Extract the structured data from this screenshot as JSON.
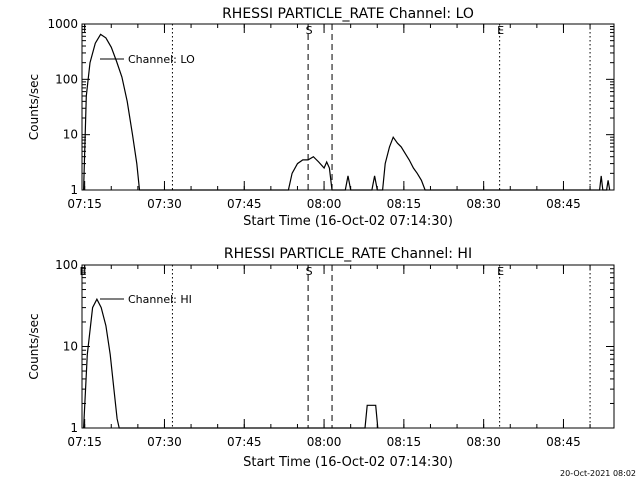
{
  "footer_timestamp": "20-Oct-2021 08:02",
  "chart_data": [
    {
      "type": "line",
      "title": "RHESSI PARTICLE_RATE Channel: LO",
      "xlabel": "Start Time (16-Oct-02 07:14:30)",
      "ylabel": "Counts/sec",
      "y_log": true,
      "ylim": [
        1,
        1000
      ],
      "y_ticks": [
        1,
        10,
        100,
        1000
      ],
      "y_tick_labels": [
        "1",
        "10",
        "100",
        "1000"
      ],
      "x_ticks": [
        0.5,
        15.5,
        30.5,
        45.5,
        60.5,
        75.5,
        90.5
      ],
      "x_tick_labels": [
        "07:15",
        "07:30",
        "07:45",
        "08:00",
        "08:15",
        "08:30",
        "08:45"
      ],
      "xlim_minutes": [
        0,
        100
      ],
      "grid": false,
      "legend": {
        "label": "Channel: LO",
        "placement": "top-left"
      },
      "markers": [
        {
          "minute": 0,
          "label": "",
          "style": "dotted"
        },
        {
          "minute": 17,
          "label": "",
          "style": "dotted"
        },
        {
          "minute": 42.5,
          "label": "S",
          "style": "dashed"
        },
        {
          "minute": 47,
          "label": "",
          "style": "dashed"
        },
        {
          "minute": 78.5,
          "label": "E",
          "style": "dotted"
        },
        {
          "minute": 95.5,
          "label": "",
          "style": "dotted"
        }
      ],
      "series": [
        {
          "name": "Channel: LO",
          "points": [
            [
              0.3,
              1
            ],
            [
              0.8,
              50
            ],
            [
              1.5,
              200
            ],
            [
              2.5,
              450
            ],
            [
              3.5,
              650
            ],
            [
              4.5,
              560
            ],
            [
              5.5,
              380
            ],
            [
              6.5,
              210
            ],
            [
              7.5,
              110
            ],
            [
              8.5,
              40
            ],
            [
              9.5,
              10
            ],
            [
              10.3,
              3
            ],
            [
              10.8,
              1
            ],
            [
              38.8,
              1
            ],
            [
              39.5,
              2
            ],
            [
              40.5,
              3
            ],
            [
              41.5,
              3.5
            ],
            [
              42.5,
              3.5
            ],
            [
              43.5,
              4
            ],
            [
              44.5,
              3.2
            ],
            [
              45.5,
              2.5
            ],
            [
              46,
              3.2
            ],
            [
              46.5,
              2.5
            ],
            [
              47,
              1
            ],
            [
              49.5,
              1
            ],
            [
              50,
              1.8
            ],
            [
              50.5,
              1
            ],
            [
              54.5,
              1
            ],
            [
              55,
              1.8
            ],
            [
              55.5,
              1
            ],
            [
              56.5,
              1
            ],
            [
              57,
              3
            ],
            [
              57.8,
              6
            ],
            [
              58.5,
              9
            ],
            [
              59.3,
              7
            ],
            [
              60,
              6
            ],
            [
              60.8,
              4.5
            ],
            [
              61.5,
              3.5
            ],
            [
              62.3,
              2.5
            ],
            [
              63,
              2
            ],
            [
              63.8,
              1.5
            ],
            [
              64.5,
              1
            ],
            [
              97.3,
              1
            ],
            [
              97.6,
              1.8
            ],
            [
              97.9,
              1
            ],
            [
              98.6,
              1
            ],
            [
              98.9,
              1.5
            ],
            [
              99.2,
              1
            ]
          ]
        }
      ]
    },
    {
      "type": "line",
      "title": "RHESSI PARTICLE_RATE Channel: HI",
      "xlabel": "Start Time (16-Oct-02 07:14:30)",
      "ylabel": "Counts/sec",
      "y_log": true,
      "ylim": [
        1,
        100
      ],
      "y_ticks": [
        1,
        10,
        100
      ],
      "y_tick_labels": [
        "1",
        "10",
        "100"
      ],
      "x_ticks": [
        0.5,
        15.5,
        30.5,
        45.5,
        60.5,
        75.5,
        90.5
      ],
      "x_tick_labels": [
        "07:15",
        "07:30",
        "07:45",
        "08:00",
        "08:15",
        "08:30",
        "08:45"
      ],
      "xlim_minutes": [
        0,
        100
      ],
      "grid": false,
      "legend": {
        "label": "Channel: HI",
        "placement": "top-left"
      },
      "markers": [
        {
          "minute": 0,
          "label": "E",
          "style": "dotted"
        },
        {
          "minute": 17,
          "label": "",
          "style": "dotted"
        },
        {
          "minute": 42.5,
          "label": "S",
          "style": "dashed"
        },
        {
          "minute": 47,
          "label": "",
          "style": "dashed"
        },
        {
          "minute": 78.5,
          "label": "E",
          "style": "dotted"
        },
        {
          "minute": 95.5,
          "label": "",
          "style": "dotted"
        }
      ],
      "series": [
        {
          "name": "Channel: HI",
          "points": [
            [
              0.3,
              1
            ],
            [
              1,
              8
            ],
            [
              2,
              30
            ],
            [
              2.8,
              38
            ],
            [
              3.6,
              30
            ],
            [
              4.5,
              18
            ],
            [
              5.3,
              8
            ],
            [
              6,
              3
            ],
            [
              6.6,
              1.3
            ],
            [
              7,
              1
            ],
            [
              53.2,
              1
            ],
            [
              53.6,
              1.9
            ],
            [
              55.2,
              1.9
            ],
            [
              55.6,
              1
            ]
          ]
        }
      ]
    }
  ]
}
